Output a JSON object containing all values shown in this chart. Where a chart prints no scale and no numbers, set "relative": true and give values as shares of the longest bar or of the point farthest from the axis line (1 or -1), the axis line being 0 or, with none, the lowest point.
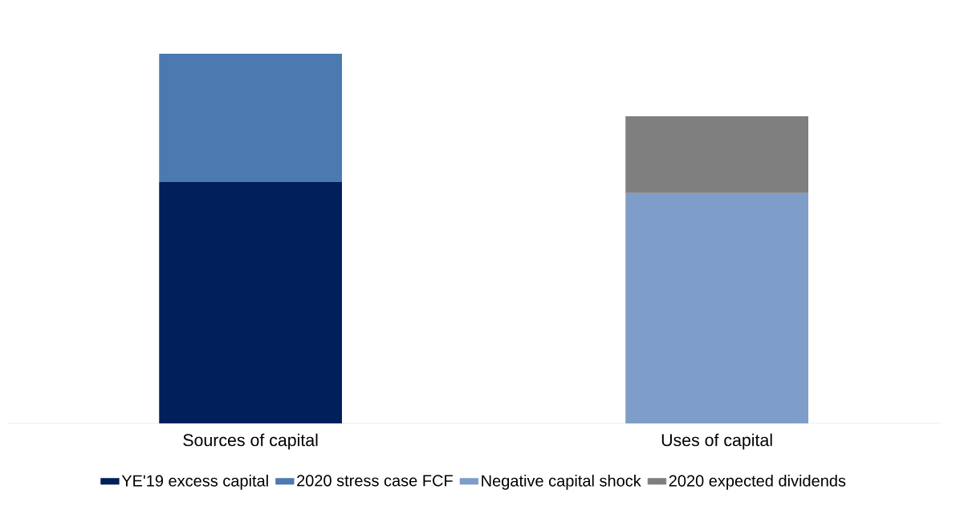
{
  "chart_data": {
    "type": "bar",
    "stacked": true,
    "relative": true,
    "legend": "bottom",
    "categories": [
      "Sources of capital",
      "Uses of capital"
    ],
    "series": [
      {
        "name": "YE'19 excess capital",
        "color": "#001f5b",
        "values": [
          0.653,
          null
        ]
      },
      {
        "name": "2020 stress case FCF",
        "color": "#4a7ab0",
        "values": [
          0.347,
          null
        ]
      },
      {
        "name": "Negative capital shock",
        "color": "#7f9dc9",
        "values": [
          null,
          0.623
        ]
      },
      {
        "name": "2020 expected dividends",
        "color": "#7f7f7f",
        "values": [
          null,
          0.208
        ]
      }
    ]
  }
}
